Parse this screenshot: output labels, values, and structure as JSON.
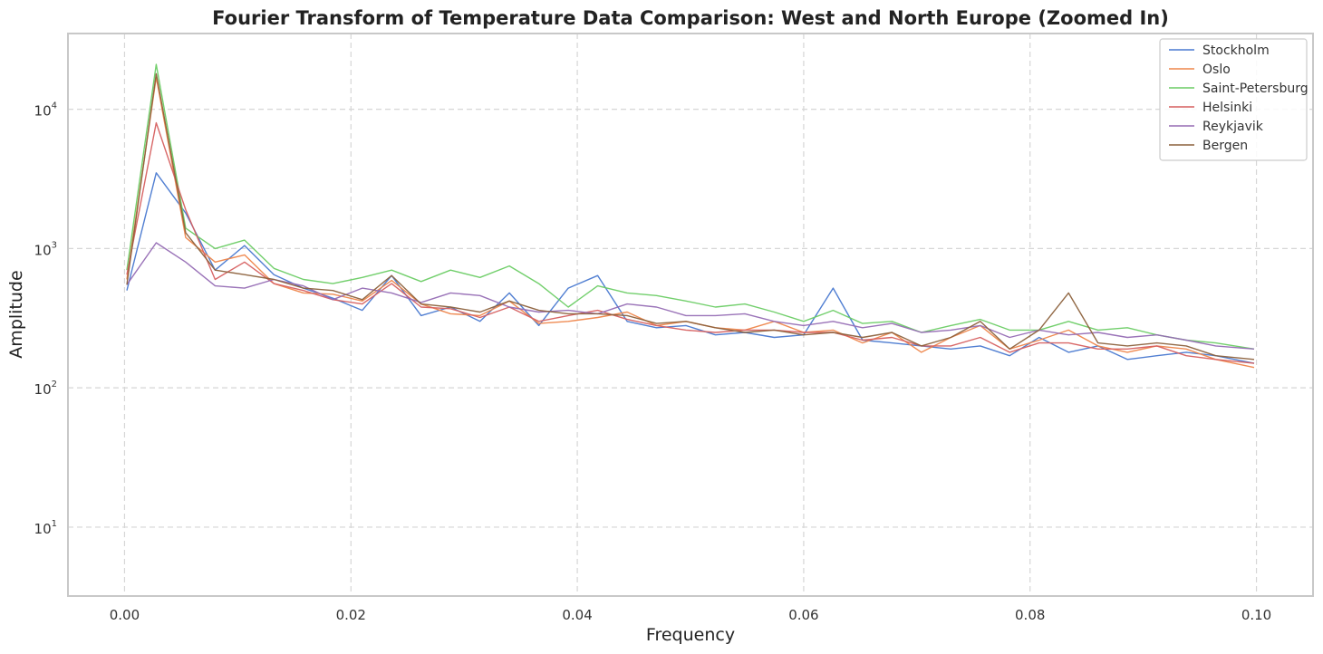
{
  "chart_data": {
    "type": "line",
    "title": "Fourier Transform of Temperature Data Comparison: West and North Europe (Zoomed In)",
    "xlabel": "Frequency",
    "ylabel": "Amplitude",
    "xlim": [
      -0.005,
      0.105
    ],
    "ylim": [
      3.2,
      35000
    ],
    "yscale": "log",
    "grid": true,
    "legend_position": "top-right",
    "x_ticks": [
      {
        "value": 0.0,
        "label": "0.00"
      },
      {
        "value": 0.02,
        "label": "0.02"
      },
      {
        "value": 0.04,
        "label": "0.04"
      },
      {
        "value": 0.06,
        "label": "0.06"
      },
      {
        "value": 0.08,
        "label": "0.08"
      },
      {
        "value": 0.1,
        "label": "0.10"
      }
    ],
    "y_ticks": [
      {
        "value": 10,
        "base": "10",
        "exp": "1"
      },
      {
        "value": 100,
        "base": "10",
        "exp": "2"
      },
      {
        "value": 1000,
        "base": "10",
        "exp": "3"
      },
      {
        "value": 10000,
        "base": "10",
        "exp": "4"
      }
    ],
    "x": [
      0.0002,
      0.0028,
      0.0054,
      0.008,
      0.0106,
      0.0132,
      0.0158,
      0.0184,
      0.021,
      0.0236,
      0.0262,
      0.0288,
      0.0314,
      0.034,
      0.0366,
      0.0392,
      0.0418,
      0.0444,
      0.047,
      0.0496,
      0.0522,
      0.0548,
      0.0574,
      0.06,
      0.0626,
      0.0652,
      0.0678,
      0.0704,
      0.073,
      0.0756,
      0.0782,
      0.0808,
      0.0834,
      0.086,
      0.0886,
      0.0912,
      0.0938,
      0.0964,
      0.0998
    ],
    "series": [
      {
        "name": "Stockholm",
        "color": "#4878d0",
        "values": [
          500,
          3500,
          1800,
          700,
          1050,
          650,
          520,
          440,
          360,
          640,
          330,
          380,
          300,
          480,
          280,
          520,
          640,
          300,
          270,
          280,
          240,
          250,
          230,
          240,
          520,
          220,
          210,
          200,
          190,
          200,
          170,
          230,
          180,
          200,
          160,
          170,
          180,
          170,
          150
        ]
      },
      {
        "name": "Oslo",
        "color": "#ee854a",
        "values": [
          600,
          17000,
          1200,
          800,
          900,
          560,
          480,
          470,
          420,
          590,
          400,
          340,
          330,
          420,
          290,
          300,
          320,
          350,
          280,
          300,
          270,
          260,
          300,
          250,
          260,
          210,
          250,
          180,
          230,
          280,
          190,
          220,
          260,
          200,
          180,
          200,
          190,
          160,
          140
        ]
      },
      {
        "name": "Saint-Petersburg",
        "color": "#6acc64",
        "values": [
          700,
          21000,
          1400,
          1000,
          1150,
          720,
          600,
          560,
          620,
          700,
          580,
          700,
          620,
          750,
          560,
          380,
          540,
          480,
          460,
          420,
          380,
          400,
          350,
          300,
          360,
          290,
          300,
          250,
          280,
          310,
          260,
          260,
          300,
          260,
          270,
          240,
          220,
          210,
          190
        ]
      },
      {
        "name": "Helsinki",
        "color": "#d65f5f",
        "values": [
          650,
          8000,
          1900,
          600,
          800,
          560,
          500,
          430,
          400,
          560,
          380,
          370,
          320,
          380,
          300,
          330,
          360,
          310,
          280,
          260,
          250,
          260,
          260,
          250,
          250,
          220,
          230,
          200,
          200,
          230,
          180,
          210,
          210,
          190,
          190,
          200,
          170,
          160,
          150
        ]
      },
      {
        "name": "Reykjavik",
        "color": "#956cb4",
        "values": [
          550,
          1100,
          800,
          540,
          520,
          600,
          540,
          430,
          520,
          480,
          410,
          480,
          460,
          380,
          350,
          360,
          340,
          400,
          380,
          330,
          330,
          340,
          300,
          280,
          300,
          270,
          290,
          250,
          260,
          280,
          230,
          260,
          240,
          250,
          230,
          240,
          220,
          200,
          190
        ]
      },
      {
        "name": "Bergen",
        "color": "#8c613c",
        "values": [
          550,
          18000,
          1300,
          700,
          650,
          600,
          520,
          500,
          430,
          640,
          400,
          380,
          350,
          420,
          360,
          340,
          340,
          330,
          290,
          300,
          270,
          250,
          260,
          240,
          250,
          230,
          250,
          200,
          230,
          300,
          190,
          260,
          480,
          210,
          200,
          210,
          200,
          170,
          160
        ]
      }
    ]
  }
}
